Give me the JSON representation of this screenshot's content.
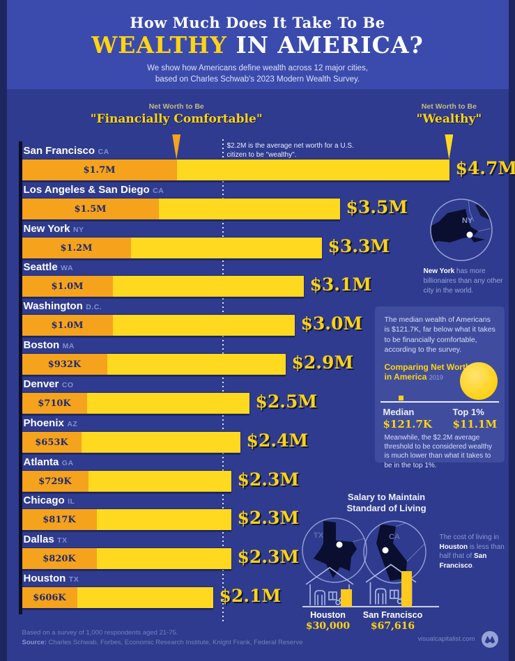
{
  "title": {
    "line1": "How Much Does It Take To Be",
    "highlight": "WEALTHY",
    "rest": " IN AMERICA?",
    "sub1": "We show how Americans define wealth across 12 major cities,",
    "sub2": "based on Charles Schwab's 2023 Modern Wealth Survey."
  },
  "columns": {
    "comfortable": {
      "small": "Net Worth to Be",
      "big": "\"Financially Comfortable\""
    },
    "wealthy": {
      "small": "Net Worth to Be",
      "big": "\"Wealthy\""
    }
  },
  "chart_data": {
    "type": "bar",
    "orientation": "horizontal",
    "unit": "millions USD",
    "title": "How Much Does It Take To Be Wealthy In America?",
    "series": [
      {
        "name": "Net Worth to Be \"Financially Comfortable\""
      },
      {
        "name": "Net Worth to Be \"Wealthy\""
      }
    ],
    "reference_line": {
      "value_millions": 2.2,
      "note": "$2.2M is the average net worth for a U.S. citizen to be \"wealthy\"."
    },
    "cities": [
      {
        "city": "San Francisco",
        "state": "CA",
        "comfortable_millions": 1.7,
        "comfortable_label": "$1.7M",
        "wealthy_millions": 4.7,
        "wealthy_label": "$4.7M"
      },
      {
        "city": "Los Angeles & San Diego",
        "state": "CA",
        "comfortable_millions": 1.5,
        "comfortable_label": "$1.5M",
        "wealthy_millions": 3.5,
        "wealthy_label": "$3.5M"
      },
      {
        "city": "New York",
        "state": "NY",
        "comfortable_millions": 1.2,
        "comfortable_label": "$1.2M",
        "wealthy_millions": 3.3,
        "wealthy_label": "$3.3M"
      },
      {
        "city": "Seattle",
        "state": "WA",
        "comfortable_millions": 1.0,
        "comfortable_label": "$1.0M",
        "wealthy_millions": 3.1,
        "wealthy_label": "$3.1M"
      },
      {
        "city": "Washington",
        "state": "D.C.",
        "comfortable_millions": 1.0,
        "comfortable_label": "$1.0M",
        "wealthy_millions": 3.0,
        "wealthy_label": "$3.0M"
      },
      {
        "city": "Boston",
        "state": "MA",
        "comfortable_millions": 0.932,
        "comfortable_label": "$932K",
        "wealthy_millions": 2.9,
        "wealthy_label": "$2.9M"
      },
      {
        "city": "Denver",
        "state": "CO",
        "comfortable_millions": 0.71,
        "comfortable_label": "$710K",
        "wealthy_millions": 2.5,
        "wealthy_label": "$2.5M"
      },
      {
        "city": "Phoenix",
        "state": "AZ",
        "comfortable_millions": 0.653,
        "comfortable_label": "$653K",
        "wealthy_millions": 2.4,
        "wealthy_label": "$2.4M"
      },
      {
        "city": "Atlanta",
        "state": "GA",
        "comfortable_millions": 0.729,
        "comfortable_label": "$729K",
        "wealthy_millions": 2.3,
        "wealthy_label": "$2.3M"
      },
      {
        "city": "Chicago",
        "state": "IL",
        "comfortable_millions": 0.817,
        "comfortable_label": "$817K",
        "wealthy_millions": 2.3,
        "wealthy_label": "$2.3M"
      },
      {
        "city": "Dallas",
        "state": "TX",
        "comfortable_millions": 0.82,
        "comfortable_label": "$820K",
        "wealthy_millions": 2.3,
        "wealthy_label": "$2.3M"
      },
      {
        "city": "Houston",
        "state": "TX",
        "comfortable_millions": 0.606,
        "comfortable_label": "$606K",
        "wealthy_millions": 2.1,
        "wealthy_label": "$2.1M"
      }
    ],
    "secondary_chart": {
      "type": "bar",
      "title": "Salary to Maintain Standard of Living",
      "categories": [
        "Houston",
        "San Francisco"
      ],
      "values": [
        30000,
        67616
      ],
      "value_labels": [
        "$30,000",
        "$67,616"
      ]
    },
    "comparison": {
      "title": "Comparing Net Worth in America 2019",
      "median_label": "Median",
      "median_value": "$121.7K",
      "top_label": "Top 1%",
      "top_value": "$11.1M"
    }
  },
  "annotation": "$2.2M is the average net worth for a U.S. citizen to be \"wealthy\".",
  "ny_insert": {
    "map_label": "NY",
    "bold": "New York",
    "rest": " has more billionaires than any other city in the world."
  },
  "median_panel": {
    "p1": "The median wealth of Americans is $121.7K, far below what it takes to be financially comfortable, according to the survey.",
    "compare_line1": "Comparing Net Worth",
    "compare_line2": "in America",
    "year": "2019",
    "median_label": "Median",
    "median_value": "$121.7K",
    "top_label": "Top 1%",
    "top_value": "$11.1M",
    "p2": "Meanwhile, the $2.2M average threshold to be considered wealthy is much lower than what it takes to be in the top 1%."
  },
  "salary_panel": {
    "title1": "Salary to Maintain",
    "title2": "Standard of Living",
    "left_map_label": "TX",
    "right_map_label": "CA",
    "left_city": "Houston",
    "left_value": "$30,000",
    "right_city": "San Francisco",
    "right_value": "$67,616",
    "note_pre": "The cost of living in ",
    "note_bold1": "Houston",
    "note_mid": " is less than half that of ",
    "note_bold2": "San Francisco",
    "note_end": "."
  },
  "footer": {
    "note": "Based on a survey of 1,000 respondents aged 21-75.",
    "source_label": "Source:",
    "source_rest": " Charles Schwab, Forbes, Economic Research Institute, Knight Frank, Federal Reserve",
    "site": "visualcapitalist.com"
  },
  "colors": {
    "background": "#2F3B8E",
    "header_band": "#3B4BAD",
    "bar_wealthy": "#FFD91F",
    "bar_comfortable": "#F5A31D",
    "accent_yellow": "#FFD411",
    "navy_text": "#20296B"
  }
}
